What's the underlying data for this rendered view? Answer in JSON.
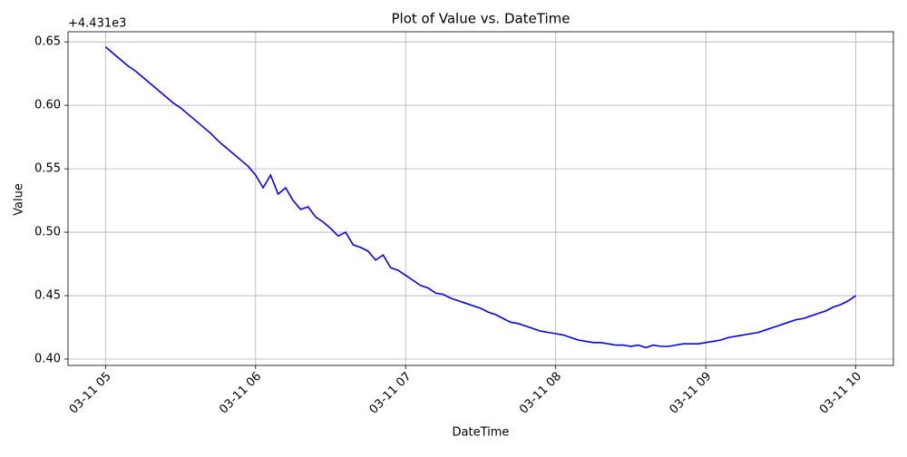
{
  "chart_data": {
    "type": "line",
    "title": "Plot of Value vs. DateTime",
    "x_label": "DateTime",
    "y_label": "Value",
    "y_offset": "+4.431e3",
    "x": [
      5,
      5.05,
      5.1,
      5.15,
      5.2,
      5.25,
      5.3,
      5.35,
      5.4,
      5.45,
      5.5,
      5.55,
      5.6,
      5.65,
      5.7,
      5.75,
      5.8,
      5.85,
      5.9,
      5.95,
      6,
      6.05,
      6.1,
      6.15,
      6.2,
      6.25,
      6.3,
      6.35,
      6.4,
      6.45,
      6.5,
      6.55,
      6.6,
      6.65,
      6.7,
      6.75,
      6.8,
      6.85,
      6.9,
      6.95,
      7,
      7.05,
      7.1,
      7.15,
      7.2,
      7.25,
      7.3,
      7.35,
      7.4,
      7.45,
      7.5,
      7.55,
      7.6,
      7.65,
      7.7,
      7.75,
      7.8,
      7.85,
      7.9,
      7.95,
      8,
      8.05,
      8.1,
      8.15,
      8.2,
      8.25,
      8.3,
      8.35,
      8.4,
      8.45,
      8.5,
      8.55,
      8.6,
      8.65,
      8.7,
      8.75,
      8.8,
      8.85,
      8.9,
      8.95,
      9,
      9.05,
      9.1,
      9.15,
      9.2,
      9.25,
      9.3,
      9.35,
      9.4,
      9.45,
      9.5,
      9.55,
      9.6,
      9.65,
      9.7,
      9.75,
      9.8,
      9.85,
      9.9,
      9.95,
      10
    ],
    "values": [
      0.646,
      0.641,
      0.636,
      0.631,
      0.627,
      0.622,
      0.617,
      0.612,
      0.607,
      0.602,
      0.598,
      0.593,
      0.588,
      0.583,
      0.578,
      0.572,
      0.567,
      0.562,
      0.557,
      0.552,
      0.545,
      0.535,
      0.545,
      0.53,
      0.535,
      0.525,
      0.518,
      0.52,
      0.512,
      0.508,
      0.503,
      0.497,
      0.5,
      0.49,
      0.488,
      0.485,
      0.478,
      0.482,
      0.472,
      0.47,
      0.466,
      0.462,
      0.458,
      0.456,
      0.452,
      0.451,
      0.448,
      0.446,
      0.444,
      0.442,
      0.44,
      0.437,
      0.435,
      0.432,
      0.429,
      0.428,
      0.426,
      0.424,
      0.422,
      0.421,
      0.42,
      0.419,
      0.417,
      0.415,
      0.414,
      0.413,
      0.413,
      0.412,
      0.411,
      0.411,
      0.41,
      0.411,
      0.409,
      0.411,
      0.41,
      0.41,
      0.411,
      0.412,
      0.412,
      0.412,
      0.413,
      0.414,
      0.415,
      0.417,
      0.418,
      0.419,
      0.42,
      0.421,
      0.423,
      0.425,
      0.427,
      0.429,
      0.431,
      0.432,
      0.434,
      0.436,
      0.438,
      0.441,
      0.443,
      0.446,
      0.45
    ],
    "color": "#0000ff",
    "grid": true,
    "xlim": [
      4.75,
      10.25
    ],
    "xticks": [
      {
        "value": 5,
        "label": "03-11 05"
      },
      {
        "value": 6,
        "label": "03-11 06"
      },
      {
        "value": 7,
        "label": "03-11 07"
      },
      {
        "value": 8,
        "label": "03-11 08"
      },
      {
        "value": 9,
        "label": "03-11 09"
      },
      {
        "value": 10,
        "label": "03-11 10"
      }
    ],
    "ylim": [
      0.395,
      0.658
    ],
    "yticks": [
      {
        "value": 0.4,
        "label": "0.40"
      },
      0.45,
      {
        "value": 0.5,
        "label": "0.50"
      },
      0.55,
      {
        "value": 0.6,
        "label": "0.60"
      },
      0.65
    ]
  }
}
